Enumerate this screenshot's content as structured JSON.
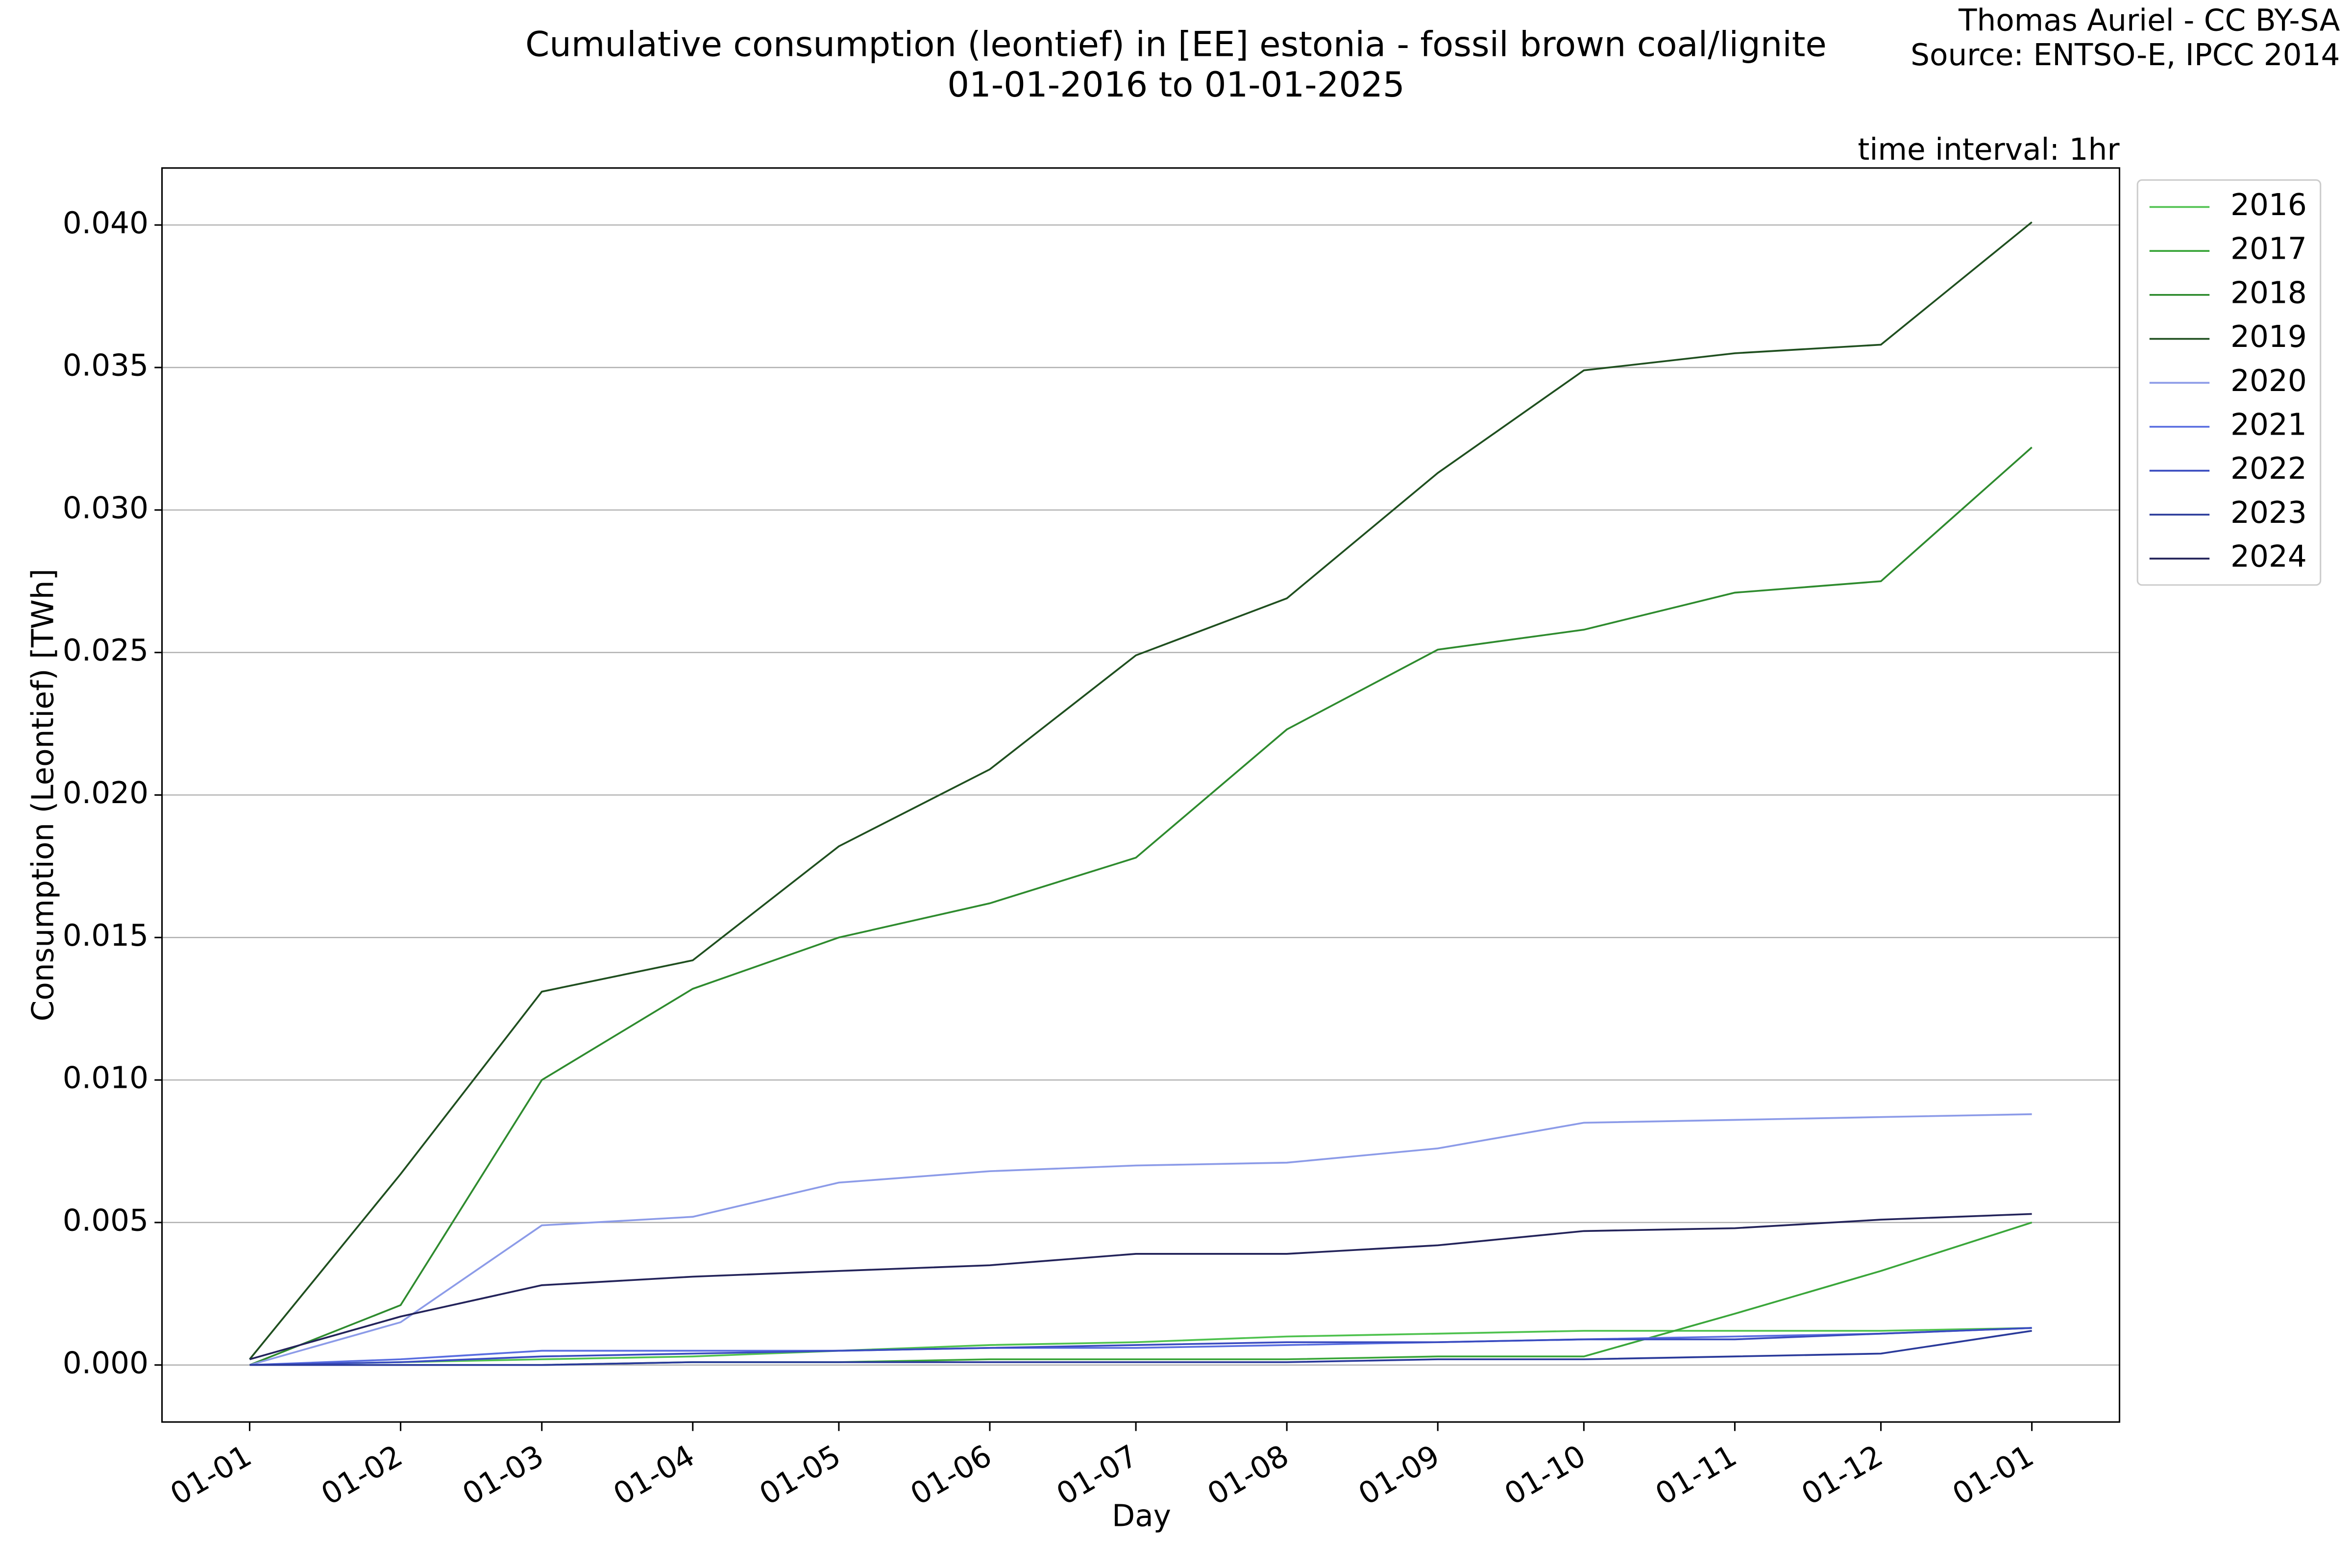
{
  "chart_data": {
    "type": "line",
    "title": "Cumulative consumption (leontief) in [EE] estonia - fossil brown coal/lignite",
    "subtitle": "01-01-2016 to 01-01-2025",
    "annotations": [
      "Thomas Auriel - CC BY-SA",
      "Source: ENTSO-E, IPCC 2014",
      "time interval: 1hr"
    ],
    "x_label": "Day",
    "y_label": "Consumption (Leontief) [TWh]",
    "x": [
      0,
      31,
      60,
      91,
      121,
      152,
      182,
      213,
      244,
      274,
      305,
      335,
      366
    ],
    "xlim": [
      -18,
      384
    ],
    "xticks": [
      {
        "value": 0,
        "label": "01-01"
      },
      {
        "value": 31,
        "label": "01-02"
      },
      {
        "value": 60,
        "label": "01-03"
      },
      {
        "value": 91,
        "label": "01-04"
      },
      {
        "value": 121,
        "label": "01-05"
      },
      {
        "value": 152,
        "label": "01-06"
      },
      {
        "value": 182,
        "label": "01-07"
      },
      {
        "value": 213,
        "label": "01-08"
      },
      {
        "value": 244,
        "label": "01-09"
      },
      {
        "value": 274,
        "label": "01-10"
      },
      {
        "value": 305,
        "label": "01-11"
      },
      {
        "value": 335,
        "label": "01-12"
      },
      {
        "value": 366,
        "label": "01-01"
      }
    ],
    "ylim": [
      -0.002,
      0.042
    ],
    "yticks": [
      {
        "value": 0,
        "label": "0.000"
      },
      {
        "value": 0.005,
        "label": "0.005"
      },
      {
        "value": 0.01,
        "label": "0.010"
      },
      {
        "value": 0.015,
        "label": "0.015"
      },
      {
        "value": 0.02,
        "label": "0.020"
      },
      {
        "value": 0.025,
        "label": "0.025"
      },
      {
        "value": 0.03,
        "label": "0.030"
      },
      {
        "value": 0.035,
        "label": "0.035"
      },
      {
        "value": 0.04,
        "label": "0.040"
      }
    ],
    "grid": true,
    "legend": "outside-upper-right",
    "series": [
      {
        "name": "2016",
        "color": "#4fc24f",
        "values": [
          0,
          0.0001,
          0.0002,
          0.0003,
          0.0005,
          0.0007,
          0.0008,
          0.001,
          0.0011,
          0.0012,
          0.0012,
          0.0012,
          0.0013
        ]
      },
      {
        "name": "2017",
        "color": "#3aa63a",
        "values": [
          0,
          0,
          0,
          0.0001,
          0.0001,
          0.0002,
          0.0002,
          0.0002,
          0.0003,
          0.0003,
          0.0018,
          0.0033,
          0.005
        ]
      },
      {
        "name": "2018",
        "color": "#2e8b2e",
        "values": [
          0,
          0.0021,
          0.01,
          0.0132,
          0.015,
          0.0162,
          0.0178,
          0.0223,
          0.0251,
          0.0258,
          0.0271,
          0.0275,
          0.0322
        ]
      },
      {
        "name": "2019",
        "color": "#1f4f1f",
        "values": [
          0.0002,
          0.0067,
          0.0131,
          0.0142,
          0.0182,
          0.0209,
          0.0249,
          0.0269,
          0.0313,
          0.0349,
          0.0355,
          0.0358,
          0.0401
        ]
      },
      {
        "name": "2020",
        "color": "#8c9be8",
        "values": [
          0,
          0.0015,
          0.0049,
          0.0052,
          0.0064,
          0.0068,
          0.007,
          0.0071,
          0.0076,
          0.0085,
          0.0086,
          0.0087,
          0.0088
        ]
      },
      {
        "name": "2021",
        "color": "#5a6ee0",
        "values": [
          0,
          0.0002,
          0.0005,
          0.0005,
          0.0005,
          0.0006,
          0.0006,
          0.0007,
          0.0008,
          0.0009,
          0.001,
          0.0011,
          0.0013
        ]
      },
      {
        "name": "2022",
        "color": "#3a4cc0",
        "values": [
          0,
          0.0001,
          0.0003,
          0.0004,
          0.0005,
          0.0006,
          0.0007,
          0.0008,
          0.0008,
          0.0009,
          0.0009,
          0.0011,
          0.0013
        ]
      },
      {
        "name": "2023",
        "color": "#2a3a9a",
        "values": [
          0,
          0,
          0,
          0.0001,
          0.0001,
          0.0001,
          0.0001,
          0.0001,
          0.0002,
          0.0002,
          0.0003,
          0.0004,
          0.0012
        ]
      },
      {
        "name": "2024",
        "color": "#23235a",
        "values": [
          0.0002,
          0.0017,
          0.0028,
          0.0031,
          0.0033,
          0.0035,
          0.0039,
          0.0039,
          0.0042,
          0.0047,
          0.0048,
          0.0051,
          0.0053
        ]
      }
    ]
  }
}
